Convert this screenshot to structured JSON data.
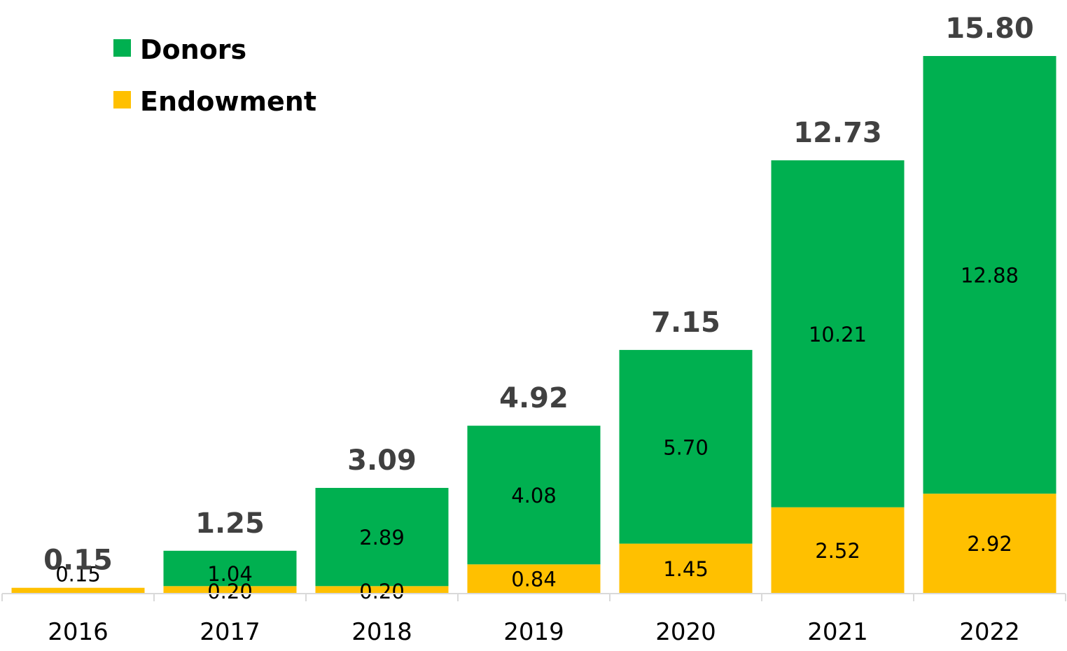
{
  "chart_data": {
    "type": "bar",
    "stacked": true,
    "categories": [
      "2016",
      "2017",
      "2018",
      "2019",
      "2020",
      "2021",
      "2022"
    ],
    "series": [
      {
        "name": "Endowment",
        "color": "#FFC000",
        "values": [
          0.15,
          0.2,
          0.2,
          0.84,
          1.45,
          2.52,
          2.92
        ],
        "labels": [
          "0.15",
          "0.20",
          "0.20",
          "0.84",
          "1.45",
          "2.52",
          "2.92"
        ]
      },
      {
        "name": "Donors",
        "color": "#00B050",
        "values": [
          0,
          1.04,
          2.89,
          4.08,
          5.7,
          10.21,
          12.88
        ],
        "labels": [
          "",
          "1.04",
          "2.89",
          "4.08",
          "5.70",
          "10.21",
          "12.88"
        ]
      }
    ],
    "totals": [
      0.15,
      1.25,
      3.09,
      4.92,
      7.15,
      12.73,
      15.8
    ],
    "total_labels": [
      "0.15",
      "1.25",
      "3.09",
      "4.92",
      "7.15",
      "12.73",
      "15.80"
    ],
    "legend": {
      "placement": "top-left",
      "entries": [
        {
          "name": "Donors",
          "color": "#00B050"
        },
        {
          "name": "Endowment",
          "color": "#FFC000"
        }
      ]
    },
    "ylim": [
      0,
      15.8
    ],
    "grid": false,
    "axis_color": "#d9d9d9"
  }
}
